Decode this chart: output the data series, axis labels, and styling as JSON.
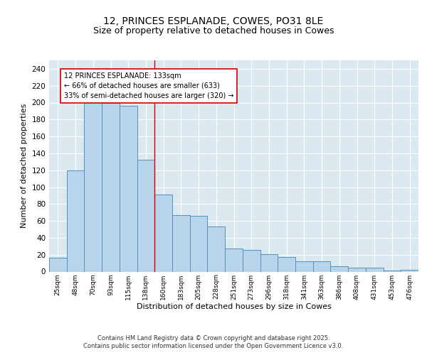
{
  "title": "12, PRINCES ESPLANADE, COWES, PO31 8LE",
  "subtitle": "Size of property relative to detached houses in Cowes",
  "xlabel": "Distribution of detached houses by size in Cowes",
  "ylabel": "Number of detached properties",
  "bins": [
    "25sqm",
    "48sqm",
    "70sqm",
    "93sqm",
    "115sqm",
    "138sqm",
    "160sqm",
    "183sqm",
    "205sqm",
    "228sqm",
    "251sqm",
    "273sqm",
    "296sqm",
    "318sqm",
    "341sqm",
    "363sqm",
    "386sqm",
    "408sqm",
    "431sqm",
    "453sqm",
    "476sqm"
  ],
  "values": [
    16,
    120,
    202,
    200,
    196,
    132,
    91,
    67,
    66,
    53,
    27,
    26,
    21,
    17,
    12,
    12,
    6,
    5,
    5,
    1,
    2
  ],
  "bar_color": "#b8d4ea",
  "bar_edge_color": "#5590c0",
  "red_line_index": 5,
  "annotation_text": "12 PRINCES ESPLANADE: 133sqm\n← 66% of detached houses are smaller (633)\n33% of semi-detached houses are larger (320) →",
  "annotation_box_color": "white",
  "annotation_box_edge_color": "#cc0000",
  "red_line_color": "#cc0000",
  "ylim": [
    0,
    250
  ],
  "yticks": [
    0,
    20,
    40,
    60,
    80,
    100,
    120,
    140,
    160,
    180,
    200,
    220,
    240
  ],
  "footer_text": "Contains HM Land Registry data © Crown copyright and database right 2025.\nContains public sector information licensed under the Open Government Licence v3.0.",
  "plot_bg_color": "#dce8f0",
  "fig_bg_color": "#ffffff",
  "title_fontsize": 10,
  "subtitle_fontsize": 9,
  "ylabel_fontsize": 8,
  "xlabel_fontsize": 8,
  "ytick_fontsize": 7.5,
  "xtick_fontsize": 6.5,
  "annot_fontsize": 7,
  "footer_fontsize": 6
}
